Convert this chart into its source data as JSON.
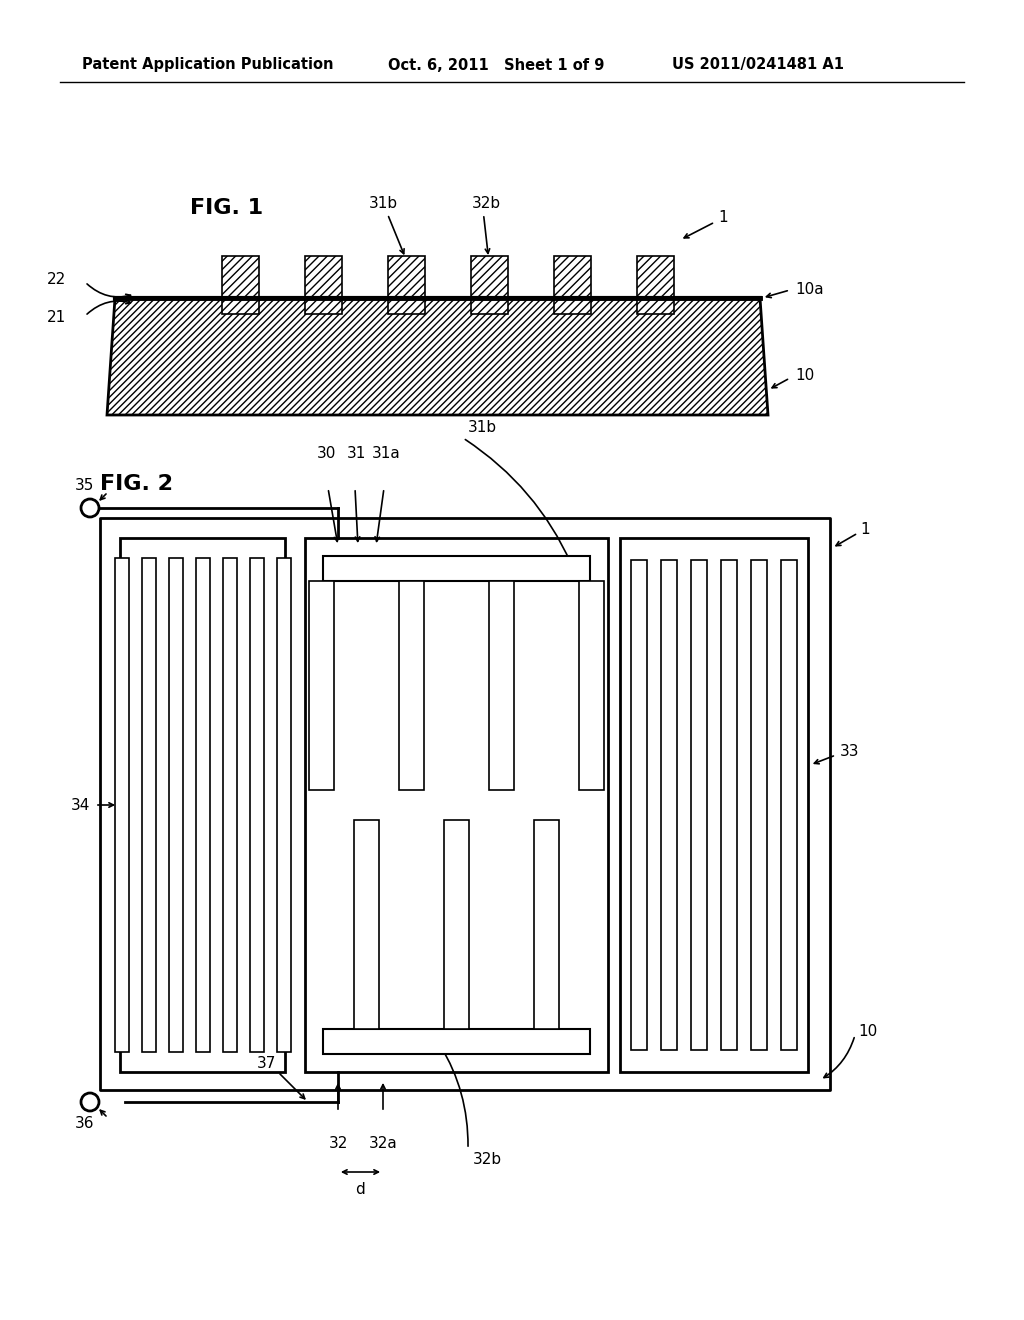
{
  "bg_color": "#ffffff",
  "header_left": "Patent Application Publication",
  "header_mid": "Oct. 6, 2011   Sheet 1 of 9",
  "header_right": "US 2011/0241481 A1",
  "fig1_label": "FIG. 1",
  "fig2_label": "FIG. 2",
  "line_color": "#000000"
}
